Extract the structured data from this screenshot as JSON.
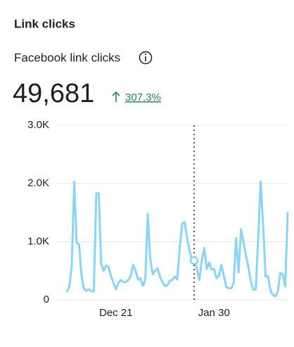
{
  "header": {
    "title": "Link clicks",
    "subtitle": "Facebook link clicks",
    "total": "49,681",
    "change": "307.3%"
  },
  "chart_data": {
    "type": "line",
    "categories": [
      null,
      null,
      null,
      null,
      null,
      null,
      null,
      null,
      null,
      null,
      null,
      null,
      null,
      null,
      null,
      null,
      null,
      null,
      null,
      null,
      "Dec 21",
      null,
      null,
      null,
      null,
      null,
      null,
      null,
      null,
      null,
      null,
      null,
      null,
      null,
      null,
      null,
      null,
      null,
      null,
      null,
      null,
      null,
      null,
      null,
      null,
      null,
      null,
      null,
      null,
      null,
      null,
      null,
      null,
      null,
      null,
      null,
      null,
      null,
      null,
      null,
      "Jan 30",
      null,
      null,
      null,
      null,
      null,
      null,
      null,
      null,
      null,
      null,
      null,
      null,
      null,
      null,
      null,
      null,
      null,
      null,
      null,
      null,
      null,
      null,
      null,
      null,
      null,
      null,
      null,
      null,
      null,
      null
    ],
    "series": [
      {
        "name": "Facebook link clicks",
        "color": "#8ad4f8",
        "values": [
          145,
          220,
          580,
          2030,
          980,
          950,
          410,
          190,
          160,
          180,
          150,
          145,
          1830,
          1830,
          620,
          500,
          590,
          570,
          410,
          290,
          180,
          290,
          340,
          310,
          300,
          340,
          400,
          600,
          500,
          350,
          370,
          240,
          350,
          1480,
          700,
          440,
          500,
          540,
          390,
          300,
          240,
          250,
          330,
          340,
          400,
          350,
          890,
          1310,
          1340,
          1060,
          860,
          680,
          680,
          530,
          340,
          680,
          890,
          530,
          640,
          520,
          530,
          370,
          410,
          600,
          410,
          220,
          200,
          200,
          290,
          1060,
          470,
          1210,
          1000,
          760,
          560,
          310,
          170,
          180,
          1060,
          2030,
          1290,
          400,
          410,
          160,
          85,
          60,
          145,
          460,
          440,
          230,
          1500
        ]
      }
    ],
    "ylim": [
      0,
      3000
    ],
    "yticks": [
      0,
      {
        "value": 1000,
        "label": "1.0K"
      },
      {
        "value": 2000,
        "label": "2.0K"
      },
      {
        "value": 3000,
        "label": "3.0K"
      }
    ],
    "grid": true
  }
}
